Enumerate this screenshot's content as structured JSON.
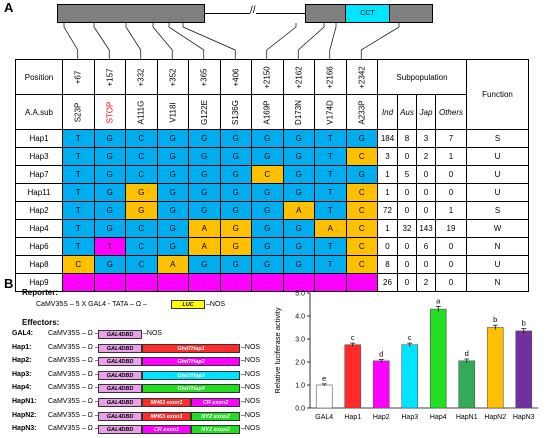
{
  "panel_a": {
    "letter": "A",
    "cct_label": "CCT",
    "break_mark": "//",
    "position_header": "Position",
    "aa_header": "A.A.sub",
    "subpop_header": "Subpopulation",
    "function_header": "Function",
    "positions": [
      "+67",
      "+157",
      "+332",
      "+352",
      "+365",
      "+406",
      "+2150",
      "+2162",
      "+2166",
      "+2342"
    ],
    "aa_subs": [
      "S23P",
      "STOP",
      "A111G",
      "V118I",
      "G122E",
      "S136G",
      "A169P",
      "D173N",
      "V174D",
      "A233P"
    ],
    "subpop_cols": [
      "Ind",
      "Aus",
      "Jap",
      "Others"
    ],
    "rows": [
      {
        "hap": "Hap1",
        "cells": [
          "T",
          "G",
          "C",
          "G",
          "G",
          "G",
          "G",
          "G",
          "T",
          "G"
        ],
        "colors": [
          "b",
          "b",
          "b",
          "b",
          "b",
          "b",
          "b",
          "b",
          "b",
          "b"
        ],
        "counts": [
          "184",
          "8",
          "3",
          "7"
        ],
        "func": "S"
      },
      {
        "hap": "Hap3",
        "cells": [
          "T",
          "G",
          "C",
          "G",
          "G",
          "G",
          "G",
          "G",
          "T",
          "C"
        ],
        "colors": [
          "b",
          "b",
          "b",
          "b",
          "b",
          "b",
          "b",
          "b",
          "b",
          "o"
        ],
        "counts": [
          "3",
          "0",
          "2",
          "1"
        ],
        "func": "U"
      },
      {
        "hap": "Hap7",
        "cells": [
          "T",
          "G",
          "C",
          "G",
          "G",
          "G",
          "C",
          "G",
          "T",
          "G"
        ],
        "colors": [
          "b",
          "b",
          "b",
          "b",
          "b",
          "b",
          "o",
          "b",
          "b",
          "b"
        ],
        "counts": [
          "1",
          "5",
          "0",
          "0"
        ],
        "func": "U"
      },
      {
        "hap": "Hap11",
        "cells": [
          "T",
          "G",
          "G",
          "G",
          "G",
          "G",
          "G",
          "G",
          "T",
          "C"
        ],
        "colors": [
          "b",
          "b",
          "o",
          "b",
          "b",
          "b",
          "b",
          "b",
          "b",
          "o"
        ],
        "counts": [
          "1",
          "0",
          "0",
          "0"
        ],
        "func": "U"
      },
      {
        "hap": "Hap2",
        "cells": [
          "T",
          "G",
          "G",
          "G",
          "G",
          "G",
          "G",
          "A",
          "T",
          "C"
        ],
        "colors": [
          "b",
          "b",
          "o",
          "b",
          "b",
          "b",
          "b",
          "o",
          "b",
          "o"
        ],
        "counts": [
          "72",
          "0",
          "0",
          "1"
        ],
        "func": "S"
      },
      {
        "hap": "Hap4",
        "cells": [
          "T",
          "G",
          "C",
          "G",
          "A",
          "G",
          "G",
          "G",
          "A",
          "C"
        ],
        "colors": [
          "b",
          "b",
          "b",
          "b",
          "o",
          "o",
          "b",
          "b",
          "o",
          "o"
        ],
        "counts": [
          "1",
          "32",
          "143",
          "19"
        ],
        "func": "W"
      },
      {
        "hap": "Hap6",
        "cells": [
          "T",
          "T",
          "C",
          "G",
          "A",
          "G",
          "G",
          "G",
          "T",
          "C"
        ],
        "colors": [
          "b",
          "m",
          "b",
          "b",
          "o",
          "o",
          "b",
          "b",
          "b",
          "o"
        ],
        "counts": [
          "0",
          "0",
          "6",
          "0"
        ],
        "func": "N"
      },
      {
        "hap": "Hap8",
        "cells": [
          "C",
          "G",
          "C",
          "A",
          "G",
          "G",
          "G",
          "G",
          "T",
          "C"
        ],
        "colors": [
          "o",
          "b",
          "b",
          "o",
          "b",
          "b",
          "b",
          "b",
          "b",
          "o"
        ],
        "counts": [
          "8",
          "0",
          "0",
          "0"
        ],
        "func": "U"
      },
      {
        "hap": "Hap9",
        "cells": [
          "-",
          "-",
          "-",
          "-",
          "-",
          "-",
          "-",
          "-",
          "-",
          "-"
        ],
        "colors": [
          "m",
          "m",
          "m",
          "m",
          "m",
          "m",
          "m",
          "m",
          "m",
          "m"
        ],
        "counts": [
          "26",
          "0",
          "2",
          "0"
        ],
        "func": "N"
      }
    ]
  },
  "panel_b": {
    "letter": "B",
    "reporter_title": "Reporter:",
    "reporter_line": "CaMV35S – 5 X GAL4 - TATA – Ω –",
    "luc": "LUC",
    "nos": "–NOS",
    "effectors_title": "Effectors:",
    "prefix": "CaMV35S – Ω –",
    "gal4dbd": "GAL4DBD",
    "constructs": [
      {
        "name": "GAL4:",
        "fusion": "",
        "fusion2": "",
        "color": "",
        "color2": ""
      },
      {
        "name": "Hap1:",
        "fusion": "Ghd7Hap1",
        "fusion2": "",
        "color": "#ff2a2a",
        "color2": ""
      },
      {
        "name": "Hap2:",
        "fusion": "Ghd7Hap2",
        "fusion2": "",
        "color": "#ff00ff",
        "color2": ""
      },
      {
        "name": "Hap3:",
        "fusion": "Ghd7Hap3",
        "fusion2": "",
        "color": "#00e5ff",
        "color2": ""
      },
      {
        "name": "Hap4:",
        "fusion": "Ghd7Hap4",
        "fusion2": "",
        "color": "#22dd22",
        "color2": ""
      },
      {
        "name": "HapN1:",
        "fusion": "MH63 exon1",
        "fusion2": "CR exon2",
        "color": "#ff2a2a",
        "color2": "#ff00ff"
      },
      {
        "name": "HapN2:",
        "fusion": "MH63 exon1",
        "fusion2": "NYZ exon2",
        "color": "#ff2a2a",
        "color2": "#22dd22"
      },
      {
        "name": "HapN3:",
        "fusion": "CR exon1",
        "fusion2": "NYZ exon2",
        "color": "#ff00ff",
        "color2": "#22dd22"
      }
    ],
    "nos_label": "–NOS"
  },
  "chart_data": {
    "type": "bar",
    "ylabel": "Relative luciferase activity",
    "ylim": [
      0,
      5.0
    ],
    "yticks": [
      "0.0",
      "1.0",
      "2.0",
      "3.0",
      "4.0",
      "5.0"
    ],
    "categories": [
      "GAL4",
      "Hap1",
      "Hap2",
      "Hap3",
      "Hap4",
      "HapN1",
      "HapN2",
      "HapN3"
    ],
    "values": [
      1.0,
      2.75,
      2.05,
      2.75,
      4.3,
      2.05,
      3.5,
      3.35
    ],
    "errors": [
      0.05,
      0.07,
      0.06,
      0.07,
      0.12,
      0.08,
      0.1,
      0.1
    ],
    "letters": [
      "e",
      "c",
      "d",
      "c",
      "a",
      "d",
      "b",
      "b"
    ],
    "colors": [
      "#ffffff",
      "#ff2a2a",
      "#ff00ff",
      "#00e5ff",
      "#22dd22",
      "#33aa55",
      "#ffc000",
      "#7030a0"
    ]
  }
}
